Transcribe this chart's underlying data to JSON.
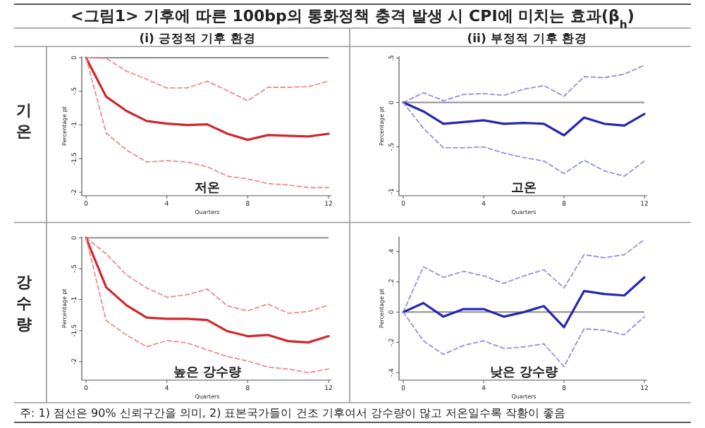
{
  "chart_data": [
    {
      "type": "line",
      "title": "<그림1> 기후에 따른 100bp의 통화정책 충격 발생 시 CPI에 미치는 효과(β$_{h}$)",
      "subtitle": "(i) 긍정적 기후 환경",
      "xlabel": "Quarters",
      "ylabel": "Percentage pt",
      "x": [
        0,
        1,
        2,
        3,
        4,
        5,
        6,
        7,
        8,
        9,
        10,
        11,
        12
      ],
      "xlim": [
        0,
        12
      ],
      "xticks": [
        0,
        4,
        8,
        12
      ],
      "ylim": [
        -2.05,
        0.02
      ],
      "yticks": [
        {
          "value": 0,
          "label": "0"
        },
        {
          "value": -0.5,
          "label": "-.5"
        },
        {
          "value": -1,
          "label": "-1"
        },
        {
          "value": -1.5,
          "label": "-1.5"
        },
        {
          "value": -2,
          "label": "-2"
        }
      ],
      "line_style": "solid",
      "marker": "none",
      "series": [
        {
          "color": "#f08a8a",
          "line_style": "dashed",
          "values": [
            0,
            -0.01,
            -0.2,
            -0.32,
            -0.45,
            -0.45,
            -0.35,
            -0.49,
            -0.64,
            -0.44,
            -0.44,
            -0.43,
            -0.35
          ]
        },
        {
          "color": "#d0262d",
          "values": [
            0,
            -0.58,
            -0.79,
            -0.94,
            -0.98,
            -1.0,
            -0.99,
            -1.13,
            -1.22,
            -1.15,
            -1.16,
            -1.17,
            -1.13
          ]
        },
        {
          "color": "#f08a8a",
          "line_style": "dashed",
          "values": [
            0,
            -1.12,
            -1.37,
            -1.55,
            -1.53,
            -1.55,
            -1.62,
            -1.76,
            -1.8,
            -1.87,
            -1.89,
            -1.93,
            -1.93
          ]
        }
      ],
      "ref_lines": [
        {
          "axis": "y",
          "value": 0,
          "color": "#8c8c8c"
        }
      ],
      "annotations": [
        "기온",
        "저온"
      ]
    },
    {
      "type": "line",
      "subtitle": "(ii) 부정적 기후 환경",
      "xlabel": "Quarters",
      "ylabel": "Percentage pt",
      "x": [
        0,
        1,
        2,
        3,
        4,
        5,
        6,
        7,
        8,
        9,
        10,
        11,
        12
      ],
      "xlim": [
        0,
        12
      ],
      "xticks": [
        0,
        4,
        8,
        12
      ],
      "ylim": [
        -1.05,
        0.52
      ],
      "yticks": [
        {
          "value": 0.5,
          "label": ".5"
        },
        {
          "value": 0,
          "label": "0"
        },
        {
          "value": -0.5,
          "label": "-.5"
        },
        {
          "value": -1,
          "label": "-1"
        }
      ],
      "line_style": "solid",
      "marker": "none",
      "series": [
        {
          "color": "#9090e0",
          "line_style": "dashed",
          "values": [
            0,
            0.11,
            0.02,
            0.09,
            0.1,
            0.08,
            0.15,
            0.19,
            0.07,
            0.29,
            0.28,
            0.32,
            0.42
          ]
        },
        {
          "color": "#2626b0",
          "values": [
            0,
            -0.1,
            -0.24,
            -0.22,
            -0.2,
            -0.24,
            -0.23,
            -0.24,
            -0.37,
            -0.17,
            -0.24,
            -0.26,
            -0.13
          ]
        },
        {
          "color": "#9090e0",
          "line_style": "dashed",
          "values": [
            0,
            -0.29,
            -0.51,
            -0.51,
            -0.5,
            -0.57,
            -0.62,
            -0.66,
            -0.8,
            -0.65,
            -0.77,
            -0.83,
            -0.66
          ]
        }
      ],
      "ref_lines": [
        {
          "axis": "y",
          "value": 0,
          "color": "#8c8c8c"
        }
      ],
      "annotations": [
        "고온"
      ]
    },
    {
      "type": "line",
      "xlabel": "Quarters",
      "ylabel": "Percentage pt",
      "x": [
        0,
        1,
        2,
        3,
        4,
        5,
        6,
        7,
        8,
        9,
        10,
        11,
        12
      ],
      "xlim": [
        0,
        12
      ],
      "xticks": [
        0,
        4,
        8,
        12
      ],
      "ylim": [
        -2.3,
        0.02
      ],
      "yticks": [
        {
          "value": 0,
          "label": "0"
        },
        {
          "value": -0.5,
          "label": "-.5"
        },
        {
          "value": -1,
          "label": "-1"
        },
        {
          "value": -1.5,
          "label": "-1.5"
        },
        {
          "value": -2,
          "label": "-2"
        }
      ],
      "line_style": "solid",
      "marker": "none",
      "series": [
        {
          "color": "#f08a8a",
          "line_style": "dashed",
          "values": [
            0,
            -0.26,
            -0.6,
            -0.81,
            -0.96,
            -0.92,
            -0.83,
            -1.1,
            -1.18,
            -1.07,
            -1.22,
            -1.19,
            -1.09
          ]
        },
        {
          "color": "#d0262d",
          "values": [
            0,
            -0.8,
            -1.09,
            -1.29,
            -1.31,
            -1.31,
            -1.33,
            -1.51,
            -1.59,
            -1.57,
            -1.67,
            -1.69,
            -1.59
          ]
        },
        {
          "color": "#f08a8a",
          "line_style": "dashed",
          "values": [
            0,
            -1.34,
            -1.57,
            -1.76,
            -1.66,
            -1.7,
            -1.81,
            -1.92,
            -1.99,
            -2.09,
            -2.12,
            -2.18,
            -2.12
          ]
        }
      ],
      "ref_lines": [
        {
          "axis": "y",
          "value": 0,
          "color": "#8c8c8c"
        }
      ],
      "annotations": [
        "강수량",
        "높은 강수량",
        "주: 1) 점선은 90% 신뢰구간을 의미, 2) 표본국가들이 건조 기후여서 강수량이 많고 저온일수록 작황이 좋음"
      ]
    },
    {
      "type": "line",
      "xlabel": "Quarters",
      "ylabel": "Percentage pt",
      "x": [
        0,
        1,
        2,
        3,
        4,
        5,
        6,
        7,
        8,
        9,
        10,
        11,
        12
      ],
      "xlim": [
        0,
        12
      ],
      "xticks": [
        0,
        4,
        8,
        12
      ],
      "ylim": [
        -0.45,
        0.5
      ],
      "yticks": [
        {
          "value": 0.4,
          "label": ".4"
        },
        {
          "value": 0.2,
          "label": ".2"
        },
        {
          "value": 0,
          "label": "0"
        },
        {
          "value": -0.2,
          "label": "-.2"
        },
        {
          "value": -0.4,
          "label": "-.4"
        }
      ],
      "line_style": "solid",
      "marker": "none",
      "series": [
        {
          "color": "#9090e0",
          "line_style": "dashed",
          "values": [
            0,
            0.3,
            0.23,
            0.27,
            0.24,
            0.19,
            0.24,
            0.28,
            0.16,
            0.38,
            0.36,
            0.38,
            0.48
          ]
        },
        {
          "color": "#2626b0",
          "values": [
            0,
            0.06,
            -0.03,
            0.02,
            0.02,
            -0.03,
            0,
            0.04,
            -0.1,
            0.14,
            0.12,
            0.11,
            0.23
          ]
        },
        {
          "color": "#9090e0",
          "line_style": "dashed",
          "values": [
            0,
            -0.19,
            -0.28,
            -0.22,
            -0.19,
            -0.24,
            -0.23,
            -0.21,
            -0.36,
            -0.11,
            -0.12,
            -0.15,
            -0.03
          ]
        }
      ],
      "ref_lines": [
        {
          "axis": "y",
          "value": 0,
          "color": "#8c8c8c"
        }
      ],
      "annotations": [
        "낮은 강수량"
      ]
    }
  ]
}
